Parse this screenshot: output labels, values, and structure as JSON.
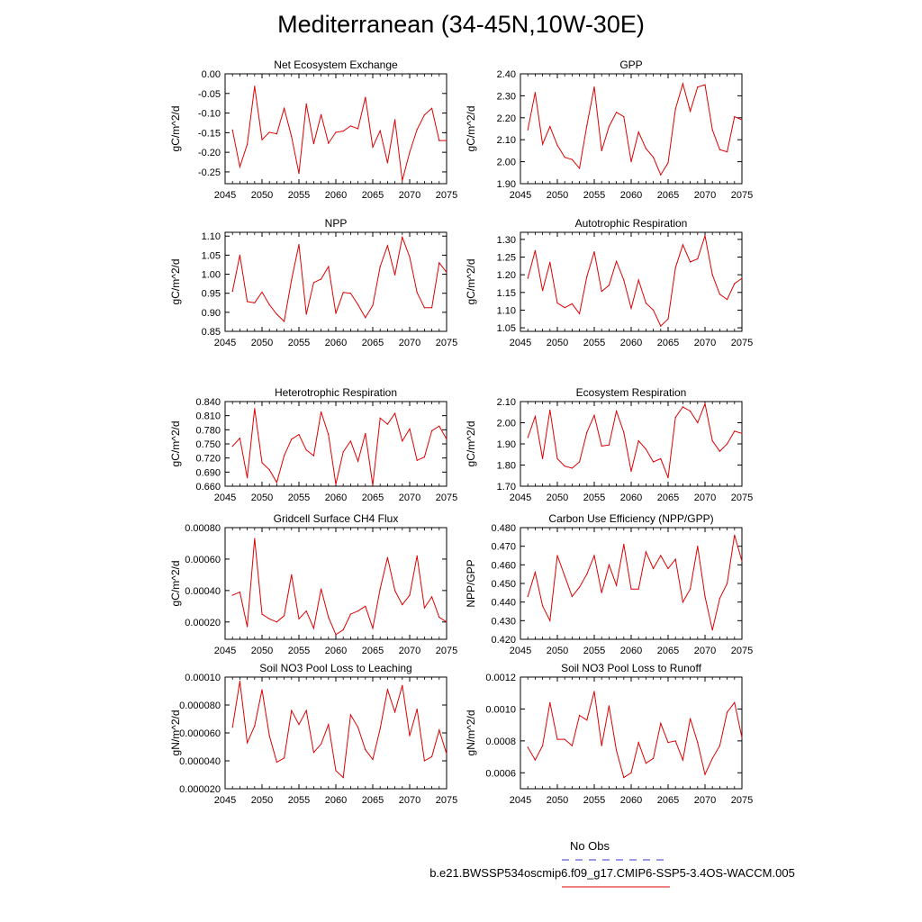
{
  "figure_title": "Mediterranean (34-45N,10W-30E)",
  "legend": {
    "obs_label": "No Obs",
    "obs_color": "#3333cc",
    "run_label": "b.e21.BWSSP534oscmip6.f09_g17.CMIP6-SSP5-3.4OS-WACCM.005",
    "run_color": "#dd0000"
  },
  "chart_data": [
    {
      "type": "line",
      "title": "Net Ecosystem Exchange",
      "ylabel": "gC/m^2/d",
      "xlim": [
        2045,
        2075
      ],
      "xticks": [
        "2045",
        "2050",
        "2055",
        "2060",
        "2065",
        "2070",
        "2075"
      ],
      "ylim": [
        -0.28,
        0.0
      ],
      "yticks": [
        "0.00",
        "-0.05",
        "-0.10",
        "-0.15",
        "-0.20",
        "-0.25"
      ],
      "x": [
        2046,
        2047,
        2048,
        2049,
        2050,
        2051,
        2052,
        2053,
        2054,
        2055,
        2056,
        2057,
        2058,
        2059,
        2060,
        2061,
        2062,
        2063,
        2064,
        2065,
        2066,
        2067,
        2068,
        2069,
        2070,
        2071,
        2072,
        2073,
        2074,
        2075
      ],
      "values": [
        -0.143,
        -0.237,
        -0.18,
        -0.032,
        -0.168,
        -0.149,
        -0.153,
        -0.088,
        -0.16,
        -0.254,
        -0.077,
        -0.178,
        -0.104,
        -0.177,
        -0.149,
        -0.146,
        -0.133,
        -0.14,
        -0.06,
        -0.187,
        -0.145,
        -0.227,
        -0.117,
        -0.272,
        -0.2,
        -0.142,
        -0.105,
        -0.088,
        -0.17,
        -0.17
      ]
    },
    {
      "type": "line",
      "title": "GPP",
      "ylabel": "gC/m^2/d",
      "xlim": [
        2045,
        2075
      ],
      "xticks": [
        "2045",
        "2050",
        "2055",
        "2060",
        "2065",
        "2070",
        "2075"
      ],
      "ylim": [
        1.9,
        2.4
      ],
      "yticks": [
        "1.90",
        "2.00",
        "2.10",
        "2.20",
        "2.30",
        "2.40"
      ],
      "x": [
        2046,
        2047,
        2048,
        2049,
        2050,
        2051,
        2052,
        2053,
        2054,
        2055,
        2056,
        2057,
        2058,
        2059,
        2060,
        2061,
        2062,
        2063,
        2064,
        2065,
        2066,
        2067,
        2068,
        2069,
        2070,
        2071,
        2072,
        2073,
        2074,
        2075
      ],
      "values": [
        2.145,
        2.315,
        2.08,
        2.16,
        2.075,
        2.02,
        2.01,
        1.97,
        2.165,
        2.34,
        2.05,
        2.16,
        2.225,
        2.205,
        2.0,
        2.135,
        2.06,
        2.02,
        1.94,
        1.995,
        2.24,
        2.355,
        2.23,
        2.34,
        2.35,
        2.145,
        2.055,
        2.045,
        2.205,
        2.19
      ]
    },
    {
      "type": "line",
      "title": "NPP",
      "ylabel": "gC/m^2/d",
      "xlim": [
        2045,
        2075
      ],
      "xticks": [
        "2045",
        "2050",
        "2055",
        "2060",
        "2065",
        "2070",
        "2075"
      ],
      "ylim": [
        0.85,
        1.11
      ],
      "yticks": [
        "0.85",
        "0.90",
        "0.95",
        "1.00",
        "1.05",
        "1.10"
      ],
      "x": [
        2046,
        2047,
        2048,
        2049,
        2050,
        2051,
        2052,
        2053,
        2054,
        2055,
        2056,
        2057,
        2058,
        2059,
        2060,
        2061,
        2062,
        2063,
        2064,
        2065,
        2066,
        2067,
        2068,
        2069,
        2070,
        2071,
        2072,
        2073,
        2074,
        2075
      ],
      "values": [
        0.955,
        1.05,
        0.928,
        0.925,
        0.953,
        0.92,
        0.895,
        0.876,
        0.985,
        1.078,
        0.895,
        0.978,
        0.987,
        1.02,
        0.897,
        0.952,
        0.95,
        0.92,
        0.886,
        0.918,
        1.02,
        1.075,
        0.998,
        1.097,
        1.045,
        0.952,
        0.912,
        0.912,
        1.03,
        1.005
      ]
    },
    {
      "type": "line",
      "title": "Autotrophic Respiration",
      "ylabel": "gC/m^2/d",
      "xlim": [
        2045,
        2075
      ],
      "xticks": [
        "2045",
        "2050",
        "2055",
        "2060",
        "2065",
        "2070",
        "2075"
      ],
      "ylim": [
        1.04,
        1.32
      ],
      "yticks": [
        "1.05",
        "1.10",
        "1.15",
        "1.20",
        "1.25",
        "1.30"
      ],
      "x": [
        2046,
        2047,
        2048,
        2049,
        2050,
        2051,
        2052,
        2053,
        2054,
        2055,
        2056,
        2057,
        2058,
        2059,
        2060,
        2061,
        2062,
        2063,
        2064,
        2065,
        2066,
        2067,
        2068,
        2069,
        2070,
        2071,
        2072,
        2073,
        2074,
        2075
      ],
      "values": [
        1.19,
        1.268,
        1.155,
        1.235,
        1.12,
        1.107,
        1.118,
        1.09,
        1.195,
        1.265,
        1.153,
        1.17,
        1.238,
        1.185,
        1.105,
        1.185,
        1.12,
        1.1,
        1.055,
        1.075,
        1.22,
        1.285,
        1.236,
        1.245,
        1.31,
        1.2,
        1.145,
        1.13,
        1.175,
        1.19
      ]
    },
    {
      "type": "line",
      "title": "Heterotrophic Respiration",
      "ylabel": "gC/m^2/d",
      "xlim": [
        2045,
        2075
      ],
      "xticks": [
        "2045",
        "2050",
        "2055",
        "2060",
        "2065",
        "2070",
        "2075"
      ],
      "ylim": [
        0.66,
        0.84
      ],
      "yticks": [
        "0.660",
        "0.690",
        "0.720",
        "0.750",
        "0.780",
        "0.810",
        "0.840"
      ],
      "x": [
        2046,
        2047,
        2048,
        2049,
        2050,
        2051,
        2052,
        2053,
        2054,
        2055,
        2056,
        2057,
        2058,
        2059,
        2060,
        2061,
        2062,
        2063,
        2064,
        2065,
        2066,
        2067,
        2068,
        2069,
        2070,
        2071,
        2072,
        2073,
        2074,
        2075
      ],
      "values": [
        0.745,
        0.762,
        0.678,
        0.825,
        0.71,
        0.695,
        0.668,
        0.725,
        0.76,
        0.77,
        0.737,
        0.725,
        0.818,
        0.77,
        0.664,
        0.733,
        0.756,
        0.713,
        0.772,
        0.662,
        0.805,
        0.792,
        0.815,
        0.756,
        0.782,
        0.715,
        0.722,
        0.778,
        0.788,
        0.76
      ]
    },
    {
      "type": "line",
      "title": "Ecosystem Respiration",
      "ylabel": "gC/m^2/d",
      "xlim": [
        2045,
        2075
      ],
      "xticks": [
        "2045",
        "2050",
        "2055",
        "2060",
        "2065",
        "2070",
        "2075"
      ],
      "ylim": [
        1.7,
        2.1
      ],
      "yticks": [
        "1.70",
        "1.80",
        "1.90",
        "2.00",
        "2.10"
      ],
      "x": [
        2046,
        2047,
        2048,
        2049,
        2050,
        2051,
        2052,
        2053,
        2054,
        2055,
        2056,
        2057,
        2058,
        2059,
        2060,
        2061,
        2062,
        2063,
        2064,
        2065,
        2066,
        2067,
        2068,
        2069,
        2070,
        2071,
        2072,
        2073,
        2074,
        2075
      ],
      "values": [
        1.93,
        2.03,
        1.83,
        2.06,
        1.83,
        1.795,
        1.785,
        1.815,
        1.955,
        2.035,
        1.89,
        1.895,
        2.055,
        1.955,
        1.77,
        1.915,
        1.875,
        1.815,
        1.83,
        1.74,
        2.025,
        2.075,
        2.055,
        2.0,
        2.09,
        1.915,
        1.865,
        1.9,
        1.96,
        1.95
      ]
    },
    {
      "type": "line",
      "title": "Gridcell Surface CH4 Flux",
      "ylabel": "gC/m^2/d",
      "xlim": [
        2045,
        2075
      ],
      "xticks": [
        "2045",
        "2050",
        "2055",
        "2060",
        "2065",
        "2070",
        "2075"
      ],
      "ylim": [
        9e-05,
        0.0008
      ],
      "yticks": [
        "0.00020",
        "0.00040",
        "0.00060",
        "0.00080"
      ],
      "x": [
        2046,
        2047,
        2048,
        2049,
        2050,
        2051,
        2052,
        2053,
        2054,
        2055,
        2056,
        2057,
        2058,
        2059,
        2060,
        2061,
        2062,
        2063,
        2064,
        2065,
        2066,
        2067,
        2068,
        2069,
        2070,
        2071,
        2072,
        2073,
        2074,
        2075
      ],
      "values": [
        0.00037,
        0.00039,
        0.00017,
        0.00073,
        0.00025,
        0.00022,
        0.0002,
        0.00024,
        0.0005,
        0.00022,
        0.00027,
        0.00016,
        0.00041,
        0.00023,
        0.00012,
        0.00015,
        0.00025,
        0.00027,
        0.0003,
        0.00016,
        0.00041,
        0.00061,
        0.0004,
        0.00031,
        0.00037,
        0.00062,
        0.00029,
        0.00036,
        0.00023,
        0.0002
      ]
    },
    {
      "type": "line",
      "title": "Carbon Use Efficiency (NPP/GPP)",
      "ylabel": "NPP/GPP",
      "xlim": [
        2045,
        2075
      ],
      "xticks": [
        "2045",
        "2050",
        "2055",
        "2060",
        "2065",
        "2070",
        "2075"
      ],
      "ylim": [
        0.42,
        0.48
      ],
      "yticks": [
        "0.420",
        "0.430",
        "0.440",
        "0.450",
        "0.460",
        "0.470",
        "0.480"
      ],
      "x": [
        2046,
        2047,
        2048,
        2049,
        2050,
        2051,
        2052,
        2053,
        2054,
        2055,
        2056,
        2057,
        2058,
        2059,
        2060,
        2061,
        2062,
        2063,
        2064,
        2065,
        2066,
        2067,
        2068,
        2069,
        2070,
        2071,
        2072,
        2073,
        2074,
        2075
      ],
      "values": [
        0.443,
        0.456,
        0.438,
        0.43,
        0.465,
        0.454,
        0.443,
        0.448,
        0.455,
        0.465,
        0.445,
        0.46,
        0.449,
        0.471,
        0.447,
        0.447,
        0.467,
        0.458,
        0.465,
        0.458,
        0.463,
        0.44,
        0.447,
        0.47,
        0.443,
        0.425,
        0.442,
        0.45,
        0.476,
        0.462
      ]
    },
    {
      "type": "line",
      "title": "Soil NO3 Pool Loss to Leaching",
      "ylabel": "gN/m^2/d",
      "xlim": [
        2045,
        2075
      ],
      "xticks": [
        "2045",
        "2050",
        "2055",
        "2060",
        "2065",
        "2070",
        "2075"
      ],
      "ylim": [
        2e-05,
        0.0001
      ],
      "yticks": [
        "0.000020",
        "0.000040",
        "0.000060",
        "0.000080",
        "0.00010"
      ],
      "x": [
        2046,
        2047,
        2048,
        2049,
        2050,
        2051,
        2052,
        2053,
        2054,
        2055,
        2056,
        2057,
        2058,
        2059,
        2060,
        2061,
        2062,
        2063,
        2064,
        2065,
        2066,
        2067,
        2068,
        2069,
        2070,
        2071,
        2072,
        2073,
        2074,
        2075
      ],
      "values": [
        6.4e-05,
        9.7e-05,
        5.3e-05,
        6.5e-05,
        9.1e-05,
        5.8e-05,
        3.9e-05,
        4.2e-05,
        7.6e-05,
        6.6e-05,
        7.6e-05,
        4.6e-05,
        5.2e-05,
        6.6e-05,
        3.3e-05,
        2.8e-05,
        7.3e-05,
        6.4e-05,
        4.8e-05,
        4.1e-05,
        6.3e-05,
        9.1e-05,
        7.5e-05,
        9.4e-05,
        5.8e-05,
        7.7e-05,
        4e-05,
        4.3e-05,
        6.2e-05,
        4.5e-05
      ]
    },
    {
      "type": "line",
      "title": "Soil NO3 Pool Loss to Runoff",
      "ylabel": "gN/m^2/d",
      "xlim": [
        2045,
        2075
      ],
      "xticks": [
        "2045",
        "2050",
        "2055",
        "2060",
        "2065",
        "2070",
        "2075"
      ],
      "ylim": [
        0.0005,
        0.0012
      ],
      "yticks": [
        "0.0006",
        "0.0008",
        "0.0010",
        "0.0012"
      ],
      "x": [
        2046,
        2047,
        2048,
        2049,
        2050,
        2051,
        2052,
        2053,
        2054,
        2055,
        2056,
        2057,
        2058,
        2059,
        2060,
        2061,
        2062,
        2063,
        2064,
        2065,
        2066,
        2067,
        2068,
        2069,
        2070,
        2071,
        2072,
        2073,
        2074,
        2075
      ],
      "values": [
        0.00076,
        0.00068,
        0.00077,
        0.00104,
        0.00081,
        0.00081,
        0.00077,
        0.00096,
        0.00093,
        0.00111,
        0.00077,
        0.00102,
        0.00074,
        0.00057,
        0.0006,
        0.00079,
        0.00066,
        0.00069,
        0.00091,
        0.00079,
        0.0008,
        0.00068,
        0.00094,
        0.00079,
        0.00059,
        0.00069,
        0.00077,
        0.00098,
        0.00104,
        0.00082
      ]
    }
  ]
}
